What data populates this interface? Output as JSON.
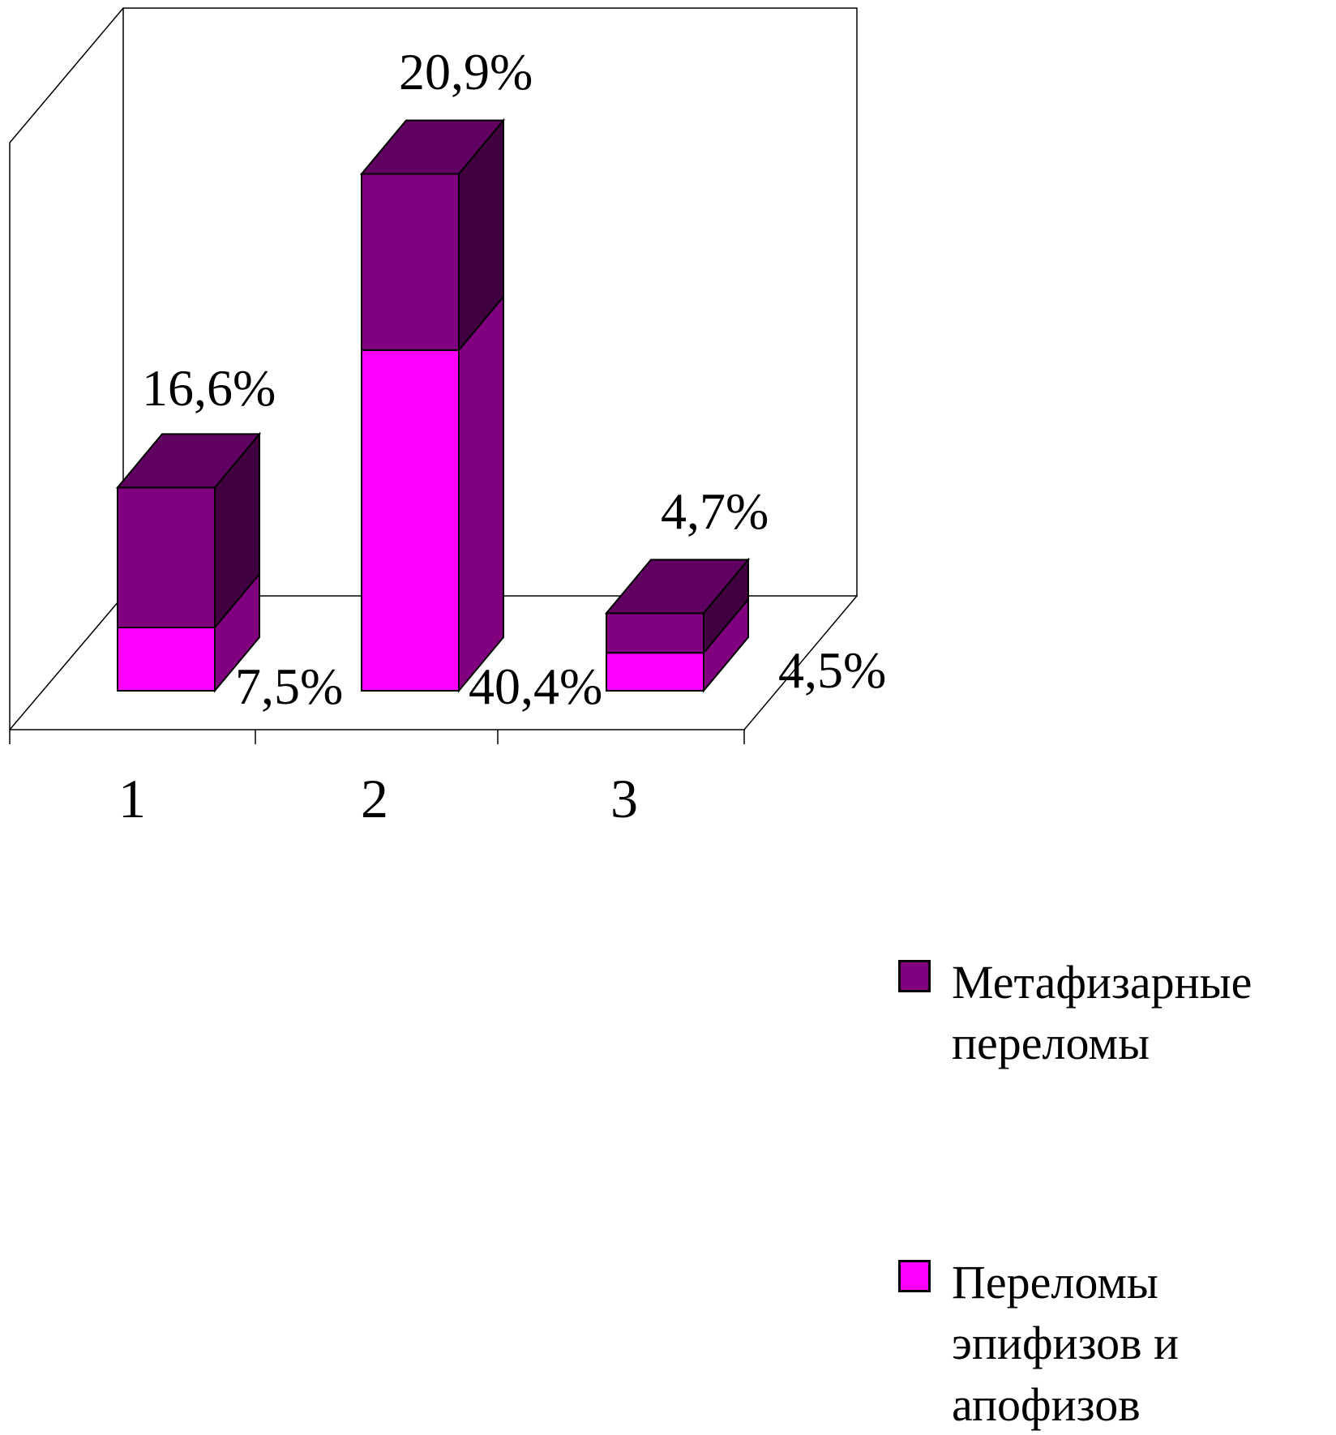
{
  "chart_data": {
    "type": "bar",
    "stacked": true,
    "three_d": true,
    "categories": [
      "1",
      "2",
      "3"
    ],
    "series": [
      {
        "name": "Переломы эпифизов и апофизов",
        "values": [
          7.5,
          40.4,
          4.5
        ],
        "labels": [
          "7,5%",
          "40,4%",
          "4,5%"
        ],
        "color": "#ff00ff",
        "side_color": "#800080"
      },
      {
        "name": "Метафизарные переломы",
        "values": [
          16.6,
          20.9,
          4.7
        ],
        "labels": [
          "16,6%",
          "20,9%",
          "4,7%"
        ],
        "color": "#800080",
        "side_color": "#400040"
      }
    ],
    "legend_position": "right",
    "grid": false
  },
  "legend": {
    "items": [
      {
        "label": "Метафизарные\nпереломы",
        "color": "#800080"
      },
      {
        "label": "Переломы\nэпифизов и\nапофизов",
        "color": "#ff00ff"
      }
    ]
  }
}
